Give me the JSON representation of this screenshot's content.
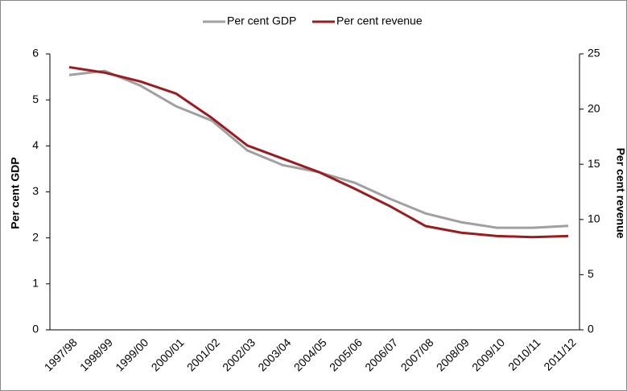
{
  "chart_data": {
    "type": "line",
    "categories": [
      "1997/98",
      "1998/99",
      "1999/00",
      "2000/01",
      "2001/02",
      "2002/03",
      "2003/04",
      "2004/05",
      "2005/06",
      "2006/07",
      "2007/08",
      "2008/09",
      "2009/10",
      "2010/11",
      "2011/12"
    ],
    "series": [
      {
        "name": "Per cent GDP",
        "color": "#a0a0a0",
        "axis": "y",
        "values": [
          5.54,
          5.63,
          5.31,
          4.86,
          4.55,
          3.9,
          3.58,
          3.43,
          3.2,
          2.85,
          2.53,
          2.34,
          2.22,
          2.22,
          2.26
        ]
      },
      {
        "name": "Per cent revenue",
        "color": "#9b1c1f",
        "axis": "y2",
        "values": [
          23.8,
          23.3,
          22.5,
          21.4,
          19.2,
          16.7,
          15.5,
          14.3,
          12.8,
          11.2,
          9.4,
          8.8,
          8.5,
          8.4,
          8.5
        ]
      }
    ],
    "ylabel": "Per cent GDP",
    "y2label": "Per cent revenue",
    "ylim": [
      0,
      6
    ],
    "yticks": [
      0,
      1,
      2,
      3,
      4,
      5,
      6
    ],
    "y2lim": [
      0,
      25
    ],
    "y2ticks": [
      0,
      5,
      10,
      15,
      20,
      25
    ],
    "legend": "top"
  }
}
